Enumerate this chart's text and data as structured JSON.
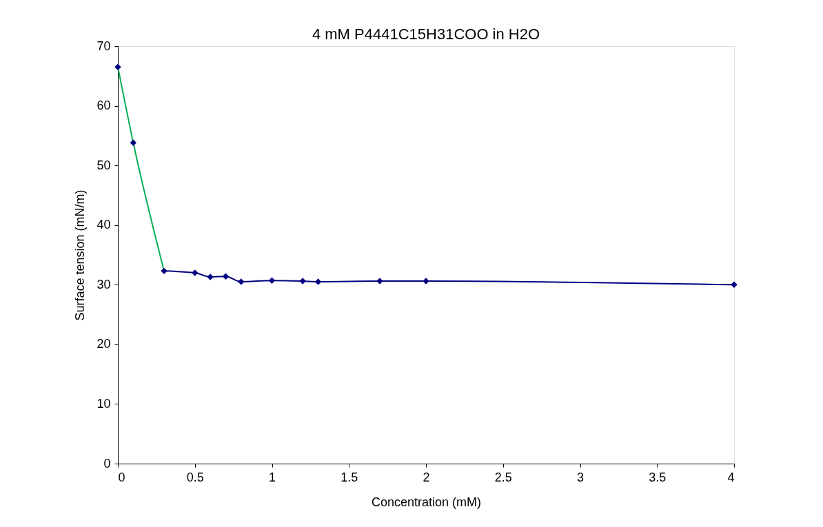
{
  "chart_data": {
    "type": "scatter",
    "title": "4 mM P4441C15H31COO in H2O",
    "xlabel": "Concentration (mM)",
    "ylabel": "Surface tension (mN/m)",
    "xlim": [
      0,
      4
    ],
    "xticks": [
      0,
      0.5,
      1,
      1.5,
      2,
      2.5,
      3,
      3.5,
      4
    ],
    "ylim": [
      0,
      70
    ],
    "yticks": [
      0,
      10,
      20,
      30,
      40,
      50,
      60,
      70
    ],
    "grid": false,
    "series": [
      {
        "type": "line",
        "color": "#00b050",
        "marker": "none",
        "x": [
          0,
          0.1,
          0.3
        ],
        "values": [
          66.5,
          53.8,
          32.3
        ]
      },
      {
        "type": "line",
        "color": "#000080",
        "marker": "none",
        "x": [
          0.3,
          0.5,
          0.6,
          0.7,
          0.8,
          1,
          1.2,
          1.3,
          1.7,
          2,
          4
        ],
        "values": [
          32.3,
          32.0,
          31.3,
          31.4,
          30.5,
          30.7,
          30.6,
          30.5,
          30.6,
          30.6,
          30.0
        ]
      },
      {
        "color": "#000080",
        "marker": "diamond",
        "x": [
          0,
          0.1,
          0.3,
          0.5,
          0.6,
          0.7,
          0.8,
          1,
          1.2,
          1.3,
          1.7,
          2,
          4
        ],
        "values": [
          66.5,
          53.8,
          32.3,
          32.0,
          31.3,
          31.4,
          30.5,
          30.7,
          30.6,
          30.5,
          30.6,
          30.6,
          30.0
        ]
      }
    ]
  }
}
